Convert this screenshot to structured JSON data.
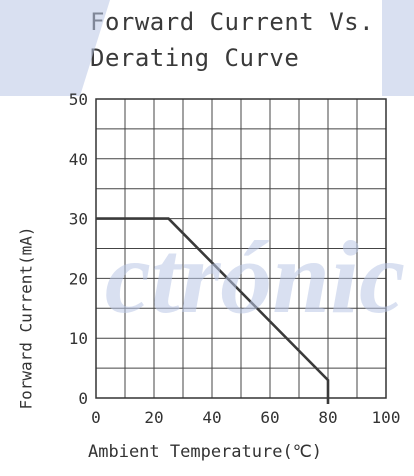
{
  "watermark": {
    "text": "ctrónic",
    "color": "#b9c6e6"
  },
  "chart_data": {
    "type": "line",
    "title": [
      "Forward Current Vs.",
      "Derating Curve"
    ],
    "xlabel": "Ambient Temperature(℃)",
    "ylabel": "Forward Current(mA)",
    "xlim": [
      0,
      100
    ],
    "ylim": [
      0,
      50
    ],
    "xticks": [
      0,
      20,
      40,
      60,
      80,
      100
    ],
    "yticks": [
      0,
      10,
      20,
      30,
      40,
      50
    ],
    "x_minor_step": 10,
    "y_minor_step": 5,
    "grid": true,
    "series": [
      {
        "points": [
          [
            0,
            30
          ],
          [
            25,
            30
          ],
          [
            80,
            3
          ],
          [
            80,
            -1
          ]
        ],
        "color": "#3a3a3a"
      }
    ]
  }
}
